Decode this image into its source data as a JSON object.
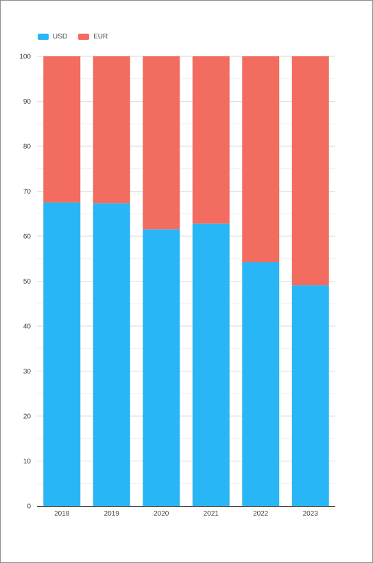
{
  "chart_data": {
    "type": "bar",
    "stacked": true,
    "categories": [
      "2018",
      "2019",
      "2020",
      "2021",
      "2022",
      "2023"
    ],
    "series": [
      {
        "name": "USD",
        "color": "#29b6f6",
        "values": [
          67.5,
          67.3,
          61.5,
          62.8,
          54.2,
          49.1
        ]
      },
      {
        "name": "EUR",
        "color": "#f26c5f",
        "values": [
          32.5,
          32.7,
          38.5,
          37.2,
          45.8,
          50.9
        ]
      }
    ],
    "ylim": [
      0,
      100
    ],
    "yticks": [
      0,
      10,
      20,
      30,
      40,
      50,
      60,
      70,
      80,
      90,
      100
    ],
    "grid": true,
    "legend_position": "top-left"
  }
}
